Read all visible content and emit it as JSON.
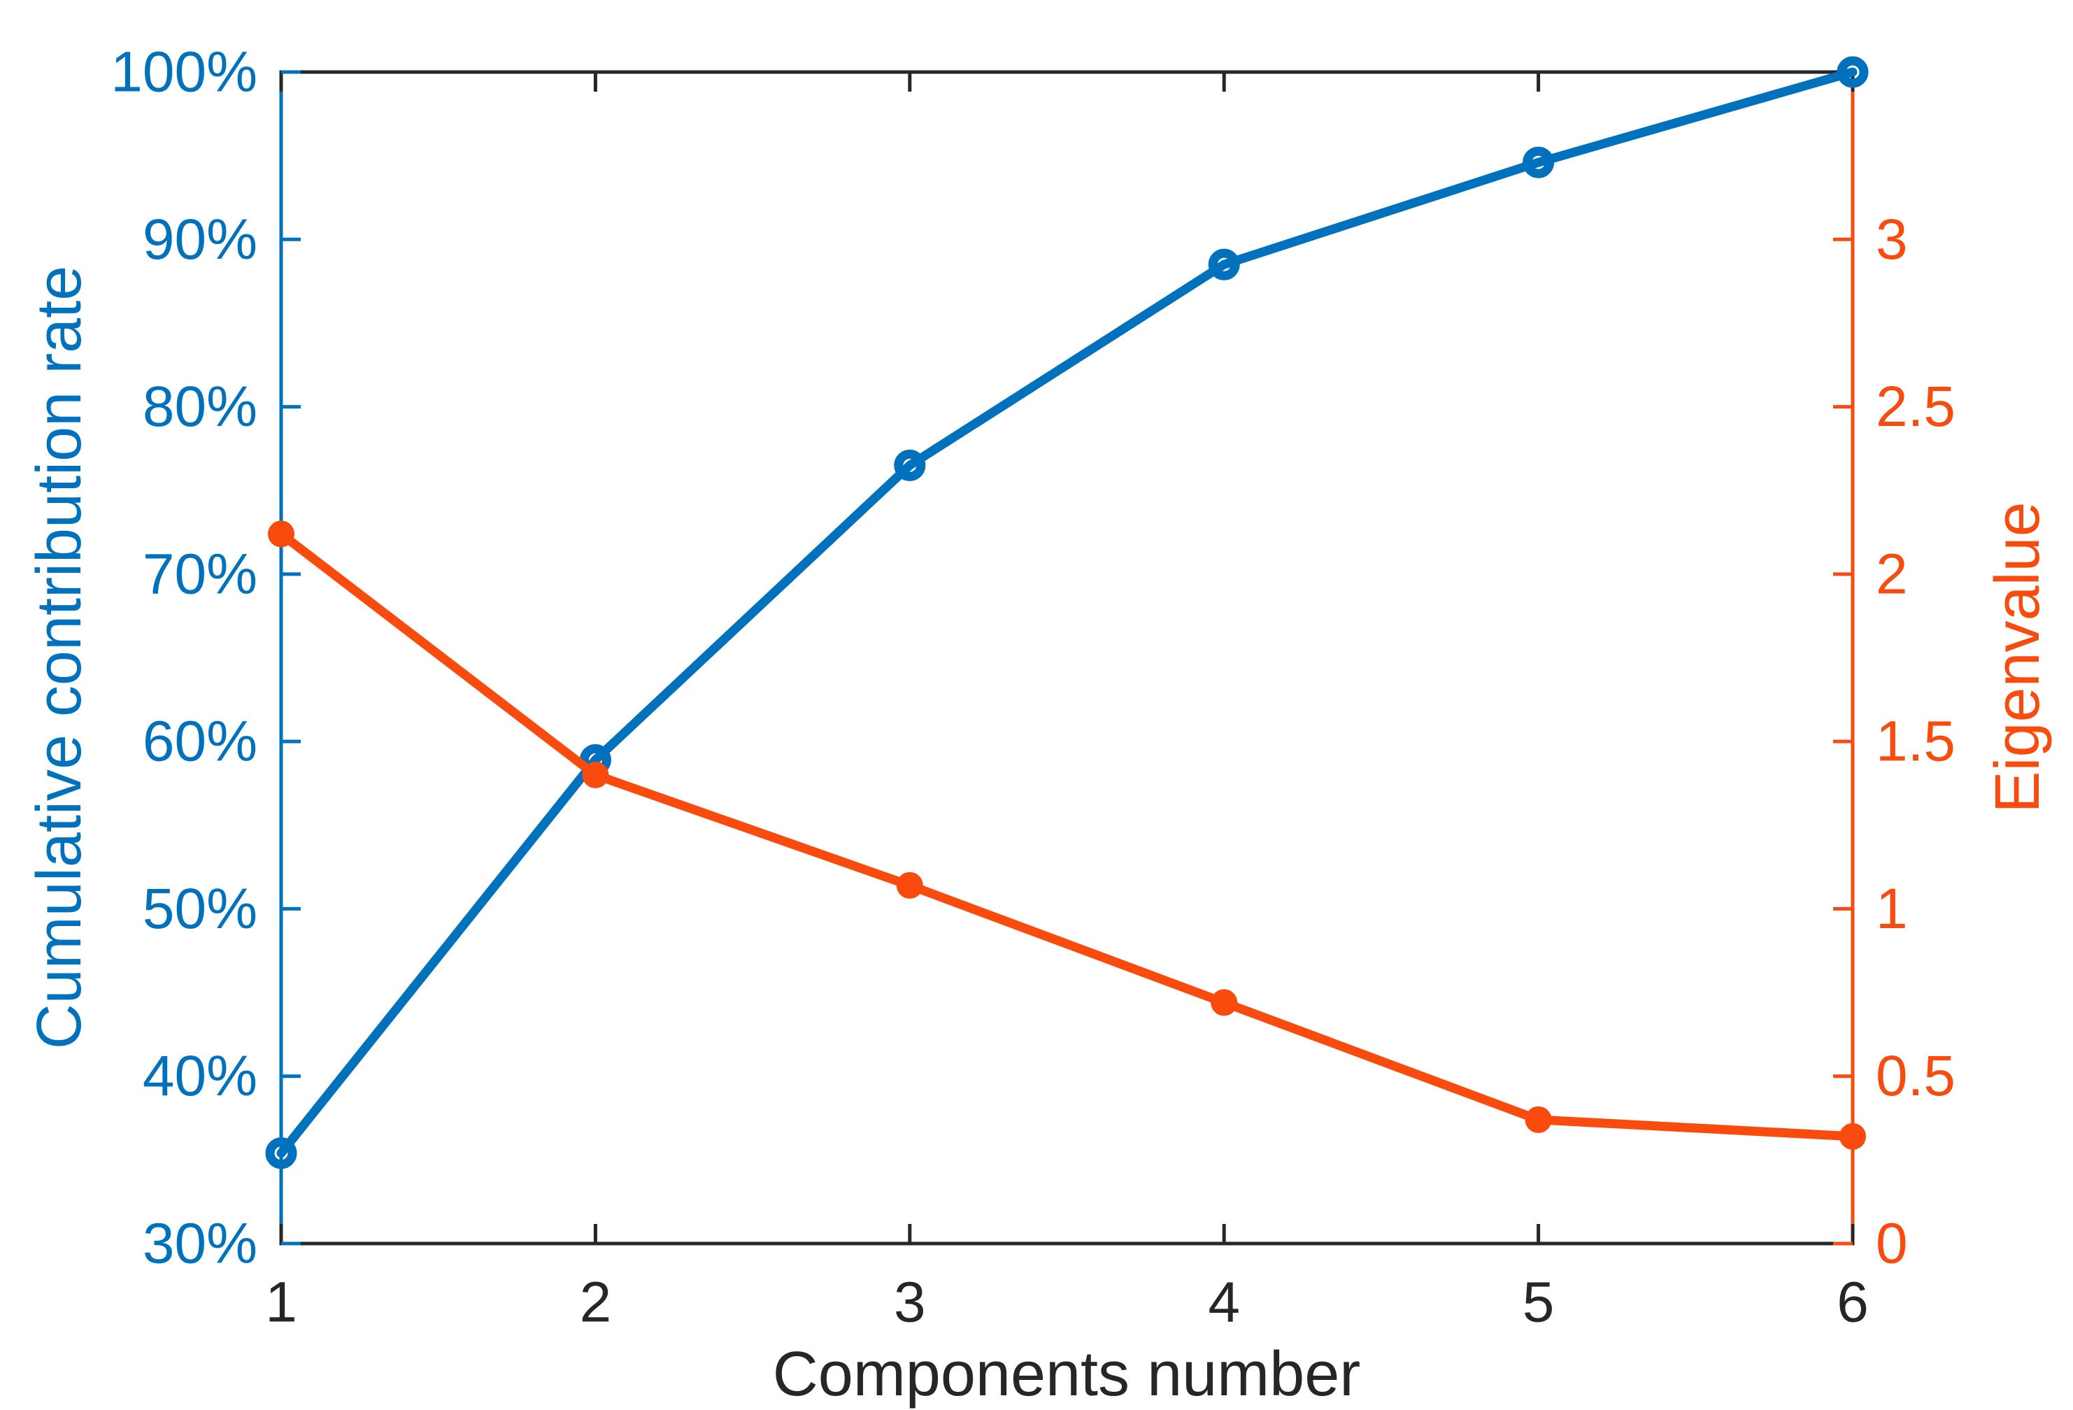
{
  "chart_data": {
    "type": "line",
    "title": "",
    "x": [
      1,
      2,
      3,
      4,
      5,
      6
    ],
    "x_tick_labels": [
      "1",
      "2",
      "3",
      "4",
      "5",
      "6"
    ],
    "xlabel": "Components number",
    "frame_color": "#262626",
    "background": "#FFFFFF",
    "grid": false,
    "legend": "none",
    "left_axis": {
      "label": "Cumulative contribution rate",
      "color": "#0072BD",
      "min": 30,
      "max": 100,
      "tick_values": [
        30,
        40,
        50,
        60,
        70,
        80,
        90,
        100
      ],
      "tick_labels": [
        "30%",
        "40%",
        "50%",
        "60%",
        "70%",
        "80%",
        "90%",
        "100%"
      ]
    },
    "right_axis": {
      "label": "Eigenvalue",
      "color": "#FA4B0E",
      "min": 0,
      "max": 3.5,
      "tick_values": [
        0,
        0.5,
        1,
        1.5,
        2,
        2.5,
        3
      ],
      "tick_labels": [
        "0",
        "0.5",
        "1",
        "1.5",
        "2",
        "2.5",
        "3"
      ]
    },
    "series": [
      {
        "name": "Cumulative contribution rate",
        "axis": "left",
        "color": "#0072BD",
        "marker": "open-circle",
        "values": [
          35.4,
          58.9,
          76.5,
          88.5,
          94.6,
          100
        ]
      },
      {
        "name": "Eigenvalue",
        "axis": "right",
        "color": "#FA4B0E",
        "marker": "filled-circle",
        "values": [
          2.12,
          1.4,
          1.07,
          0.72,
          0.37,
          0.32
        ]
      }
    ]
  }
}
